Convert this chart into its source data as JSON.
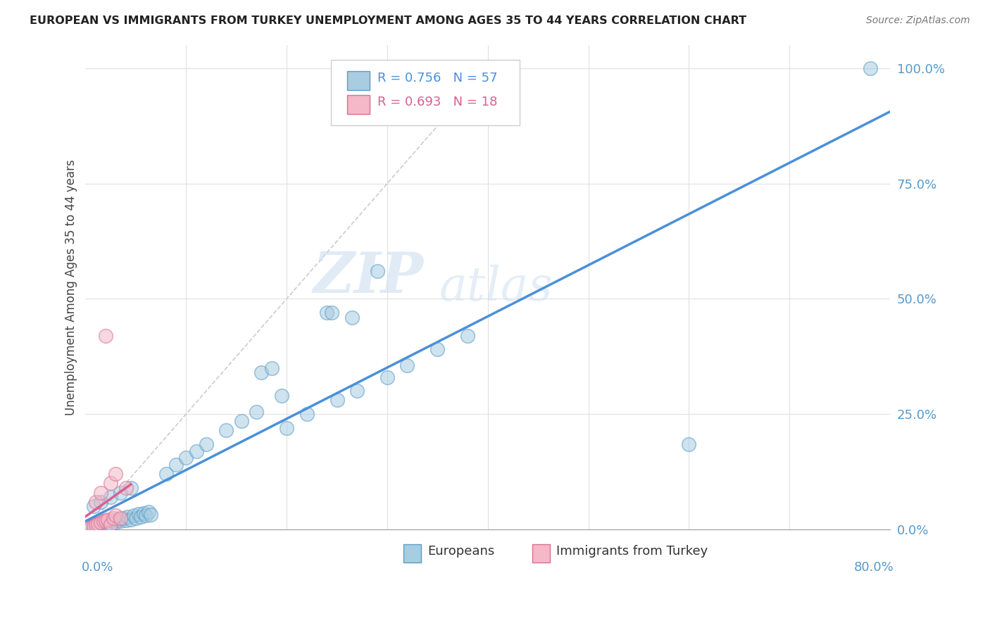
{
  "title": "EUROPEAN VS IMMIGRANTS FROM TURKEY UNEMPLOYMENT AMONG AGES 35 TO 44 YEARS CORRELATION CHART",
  "source": "Source: ZipAtlas.com",
  "ylabel": "Unemployment Among Ages 35 to 44 years",
  "ytick_labels": [
    "0.0%",
    "25.0%",
    "50.0%",
    "75.0%",
    "100.0%"
  ],
  "ytick_values": [
    0.0,
    0.25,
    0.5,
    0.75,
    1.0
  ],
  "xlim": [
    0.0,
    0.8
  ],
  "ylim": [
    0.0,
    1.05
  ],
  "legend_r_blue": "R = 0.756",
  "legend_n_blue": "N = 57",
  "legend_r_pink": "R = 0.693",
  "legend_n_pink": "N = 18",
  "color_blue_face": "#a8cce0",
  "color_blue_edge": "#5b9dc9",
  "color_pink_face": "#f4b8c8",
  "color_pink_edge": "#d97090",
  "color_line_blue": "#4a90d9",
  "color_line_pink": "#d96090",
  "color_diag": "#cccccc",
  "watermark_zip": "ZIP",
  "watermark_atlas": "atlas",
  "title_color": "#222222",
  "source_color": "#777777",
  "ylabel_color": "#444444",
  "ytick_color": "#5599cc",
  "grid_color": "#e0e0e0"
}
